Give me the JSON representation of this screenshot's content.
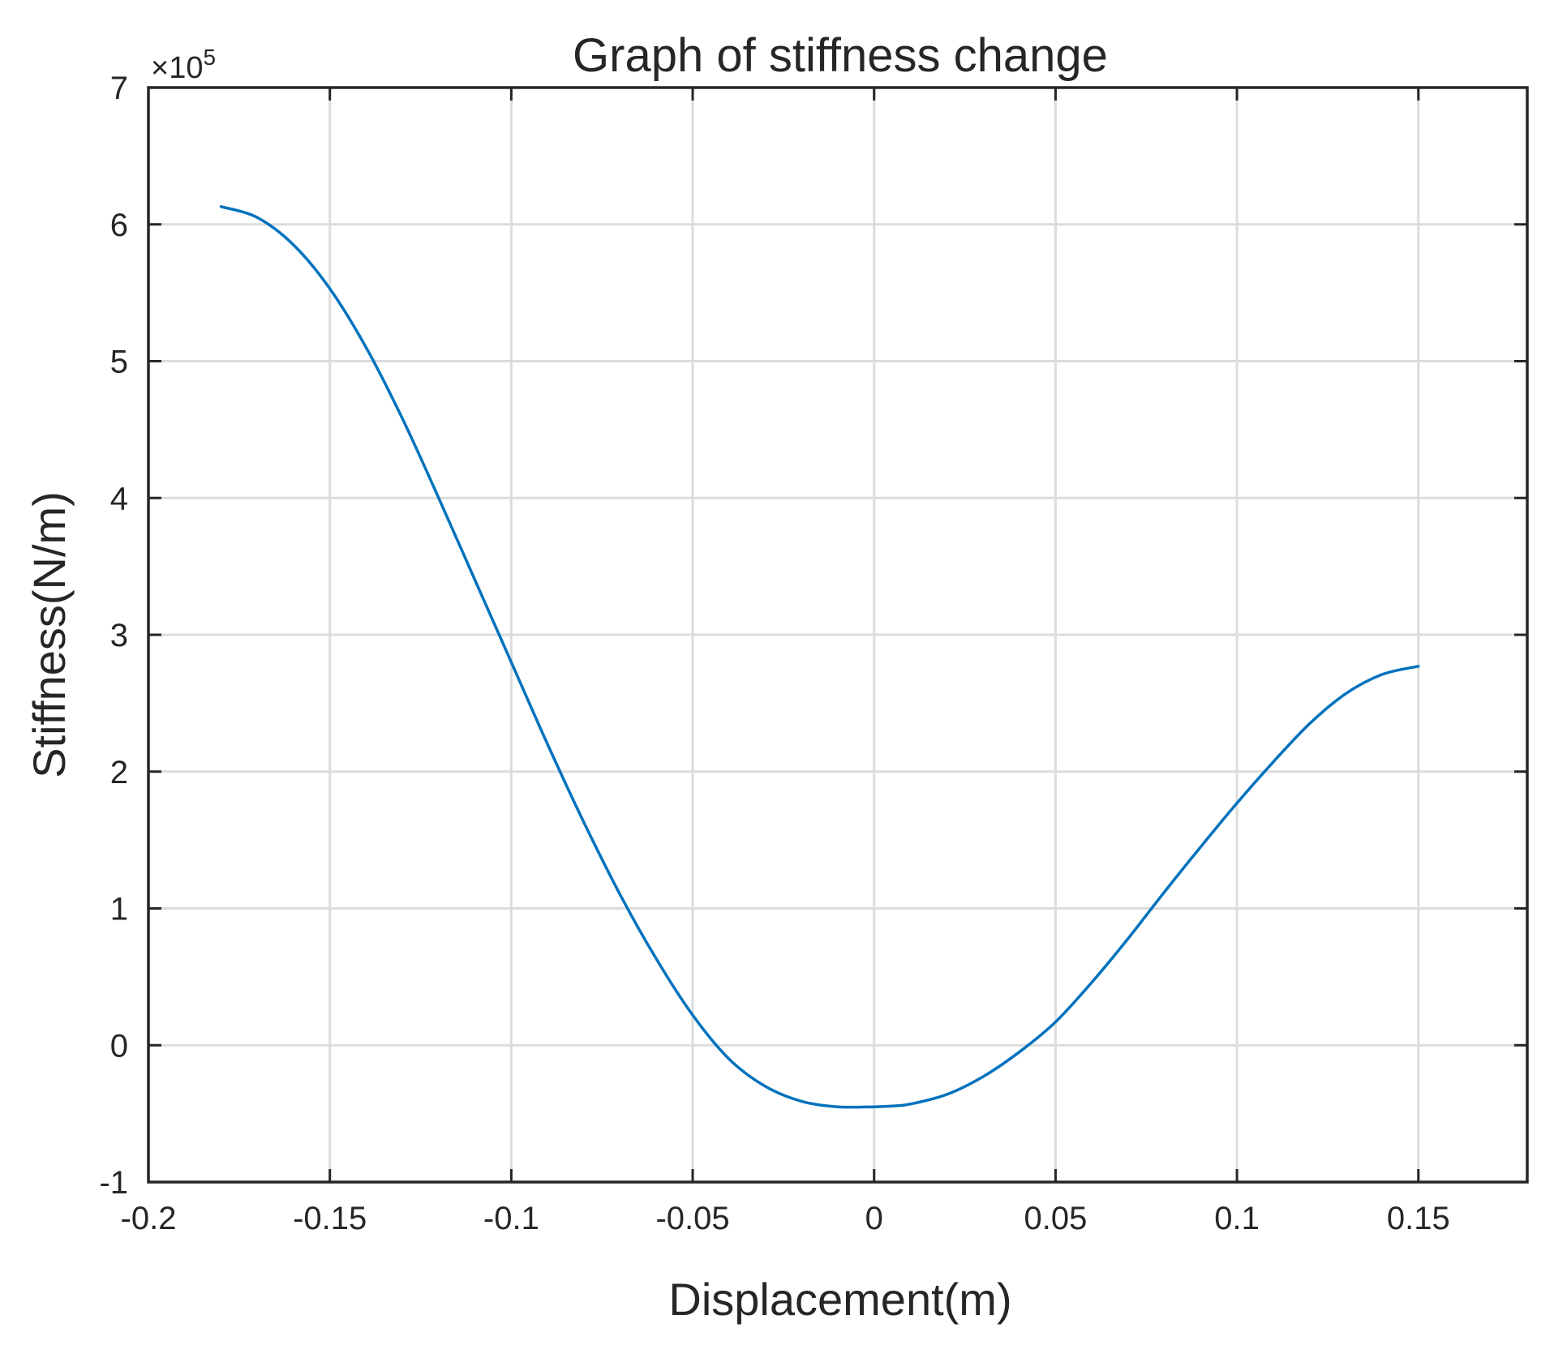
{
  "chart_data": {
    "type": "line",
    "title": "Graph of stiffness change",
    "xlabel": "Displacement(m)",
    "ylabel": "Stiffness(N/m)",
    "y_multiplier_label": "×10",
    "y_multiplier_exponent": "5",
    "xlim": [
      -0.2,
      0.18
    ],
    "ylim": [
      -1,
      7
    ],
    "x_ticks": [
      -0.2,
      -0.15,
      -0.1,
      -0.05,
      0,
      0.05,
      0.1,
      0.15
    ],
    "x_tick_labels": [
      "-0.2",
      "-0.15",
      "-0.1",
      "-0.05",
      "0",
      "0.05",
      "0.1",
      "0.15"
    ],
    "y_ticks": [
      -1,
      0,
      1,
      2,
      3,
      4,
      5,
      6,
      7
    ],
    "y_tick_labels": [
      "-1",
      "0",
      "1",
      "2",
      "3",
      "4",
      "5",
      "6",
      "7"
    ],
    "grid": true,
    "box": true,
    "series": [
      {
        "color": "#0072BD",
        "x": [
          -0.18,
          -0.17,
          -0.16,
          -0.15,
          -0.14,
          -0.13,
          -0.12,
          -0.11,
          -0.1,
          -0.09,
          -0.08,
          -0.07,
          -0.06,
          -0.05,
          -0.04,
          -0.03,
          -0.02,
          -0.01,
          0.0,
          0.005,
          0.01,
          0.02,
          0.03,
          0.04,
          0.05,
          0.06,
          0.07,
          0.08,
          0.09,
          0.1,
          0.11,
          0.12,
          0.13,
          0.14,
          0.15
        ],
        "y": [
          6.13,
          6.05,
          5.85,
          5.53,
          5.1,
          4.58,
          4.0,
          3.4,
          2.8,
          2.2,
          1.63,
          1.1,
          0.63,
          0.22,
          -0.1,
          -0.3,
          -0.41,
          -0.45,
          -0.45,
          -0.445,
          -0.43,
          -0.36,
          -0.23,
          -0.05,
          0.17,
          0.46,
          0.78,
          1.12,
          1.45,
          1.77,
          2.07,
          2.35,
          2.57,
          2.71,
          2.77
        ]
      }
    ]
  }
}
